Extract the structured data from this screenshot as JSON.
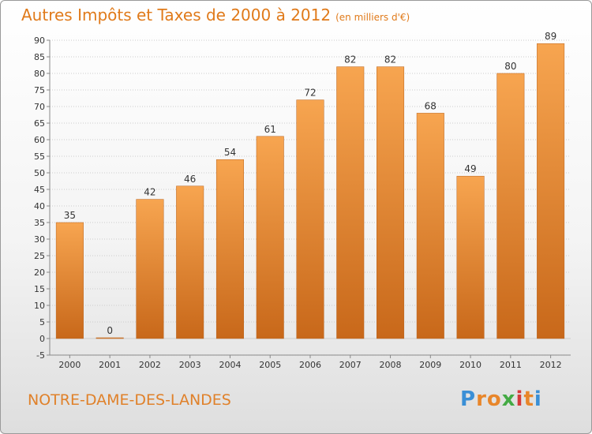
{
  "title": "Autres Impôts et Taxes de 2000 à 2012",
  "unit_note": "(en milliers d'€)",
  "commune": "NOTRE-DAME-DES-LANDES",
  "brand": {
    "letters": [
      "P",
      "r",
      "o",
      "x",
      "i",
      "t",
      "i"
    ],
    "colors": [
      "#3a8fd6",
      "#e8862a",
      "#e8862a",
      "#44aa44",
      "#d63a3a",
      "#e8862a",
      "#3a8fd6"
    ]
  },
  "colors": {
    "bar_top": "#f7a550",
    "bar_bottom": "#c8681a",
    "title": "#e07a1a",
    "grid": "#cccccc"
  },
  "chart_data": {
    "type": "bar",
    "title": "Autres Impôts et Taxes de 2000 à 2012",
    "categories": [
      "2000",
      "2001",
      "2002",
      "2003",
      "2004",
      "2005",
      "2006",
      "2007",
      "2008",
      "2009",
      "2010",
      "2011",
      "2012"
    ],
    "values": [
      35,
      0,
      42,
      46,
      54,
      61,
      72,
      82,
      82,
      68,
      49,
      80,
      89
    ],
    "data_labels": [
      "35",
      "0",
      "42",
      "46",
      "54",
      "61",
      "72",
      "82",
      "82",
      "68",
      "49",
      "80",
      "89"
    ],
    "yticks": [
      "90",
      "85",
      "80",
      "75",
      "70",
      "65",
      "60",
      "55",
      "50",
      "45",
      "40",
      "35",
      "30",
      "25",
      "20",
      "15",
      "10",
      "5",
      "0",
      "-5"
    ],
    "ylim": [
      -5,
      90
    ],
    "grid": true,
    "legend": "none"
  }
}
